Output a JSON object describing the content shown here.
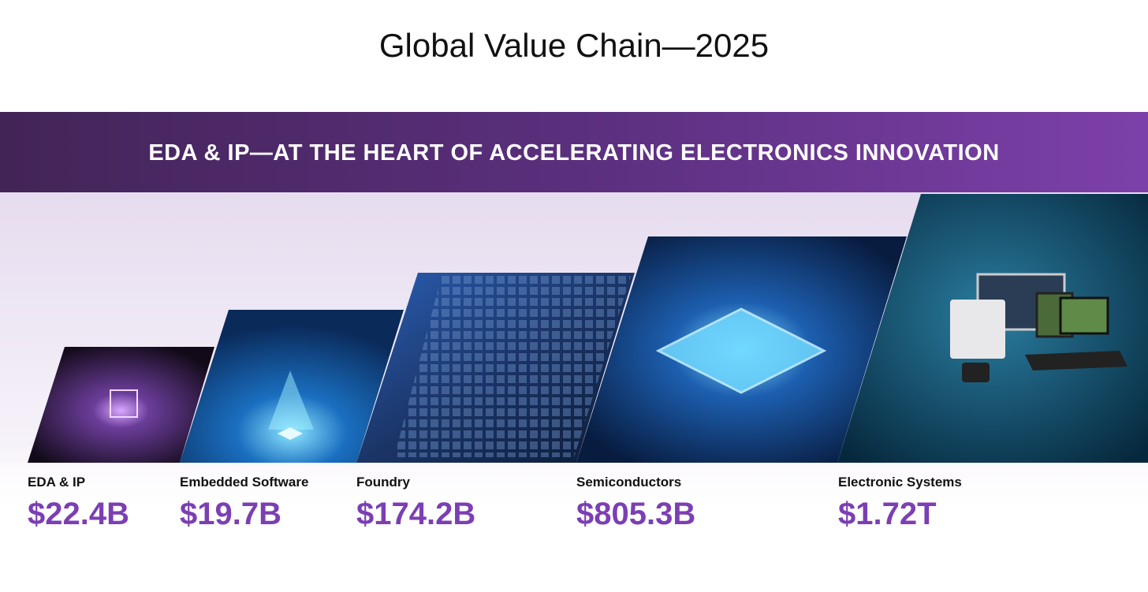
{
  "title": "Global Value Chain—2025",
  "banner": "EDA & IP—AT THE HEART OF ACCELERATING ELECTRONICS INNOVATION",
  "segments": [
    {
      "label": "EDA & IP",
      "value": "$22.4B"
    },
    {
      "label": "Embedded Software",
      "value": "$19.7B"
    },
    {
      "label": "Foundry",
      "value": "$174.2B"
    },
    {
      "label": "Semiconductors",
      "value": "$805.3B"
    },
    {
      "label": "Electronic Systems",
      "value": "$1.72T"
    }
  ]
}
